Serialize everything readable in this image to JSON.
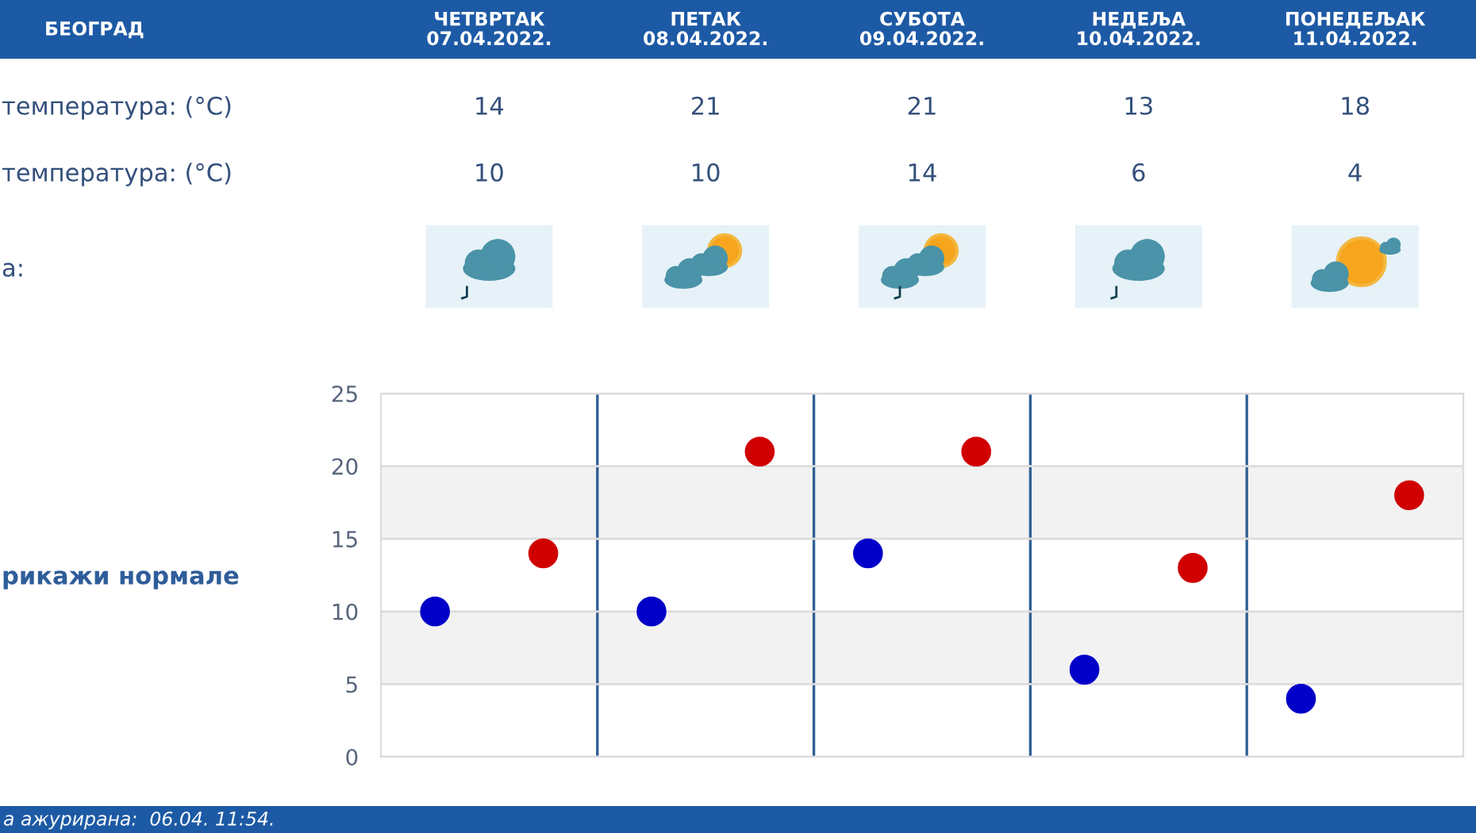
{
  "chart_data": {
    "type": "scatter",
    "title": "БЕОГРАД",
    "categories": [
      null,
      null,
      null,
      null,
      null
    ],
    "series": [
      {
        "color": "#0000c8",
        "values": [
          10,
          10,
          14,
          6,
          4
        ]
      },
      {
        "color": "#d00000",
        "values": [
          14,
          21,
          21,
          13,
          18
        ]
      }
    ],
    "ylim": [
      0,
      25
    ],
    "yticks": [
      0,
      5,
      10,
      15,
      20,
      25
    ],
    "grid": true,
    "marker": "circle",
    "data_labels": true,
    "bands": [
      {
        "axis": "y",
        "from": 5,
        "to": 10,
        "color": "#f2f2f2"
      },
      {
        "axis": "y",
        "from": 15,
        "to": 20,
        "color": "#f2f2f2"
      }
    ],
    "annotations": [
      "ЧЕТВРТАК\n07.04.2022.",
      "ПЕТАК\n08.04.2022.",
      "СУБОТА\n09.04.2022.",
      "НЕДЕЉА\n10.04.2022.",
      "ПОНЕДЕЉАК\n11.04.2022.",
      "температура: (°C)",
      "температура: (°C)",
      "а:",
      "рикажи нормале",
      "а ажурирана:  06.04. 11:54."
    ]
  }
}
